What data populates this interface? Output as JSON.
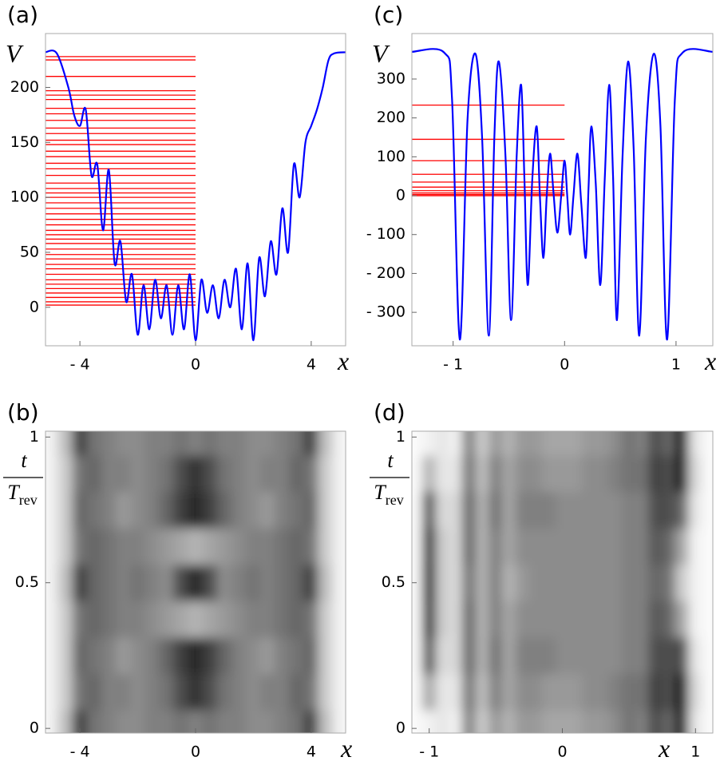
{
  "chart_data": [
    {
      "type": "line",
      "panel_label": "(a)",
      "xlabel": "x",
      "ylabel": "V",
      "xlim": [
        -5.19,
        5.19
      ],
      "ylim": [
        -35,
        249
      ],
      "xticks": [
        {
          "value": -4,
          "label": "- 4"
        },
        0,
        4
      ],
      "yticks": [
        0,
        50,
        100,
        150,
        200
      ],
      "color": "#0000ff",
      "x": [
        -5.2,
        -4.8,
        -4.4,
        -4.2,
        -4.0,
        -3.8,
        -3.6,
        -3.4,
        -3.2,
        -3.0,
        -2.8,
        -2.6,
        -2.4,
        -2.2,
        -2.0,
        -1.8,
        -1.6,
        -1.4,
        -1.2,
        -1.0,
        -0.8,
        -0.6,
        -0.4,
        -0.2,
        0,
        0.2,
        0.4,
        0.6,
        0.8,
        1.0,
        1.2,
        1.4,
        1.6,
        1.8,
        2.0,
        2.2,
        2.4,
        2.6,
        2.8,
        3.0,
        3.2,
        3.4,
        3.6,
        3.8,
        4.0,
        4.2,
        4.4,
        4.6,
        4.8,
        5.2
      ],
      "values": [
        232,
        231,
        200,
        175,
        165,
        180,
        120,
        130,
        70,
        125,
        40,
        60,
        5,
        30,
        -25,
        20,
        -20,
        25,
        -10,
        20,
        -25,
        20,
        -20,
        30,
        -30,
        25,
        -5,
        20,
        -10,
        25,
        0,
        35,
        -20,
        40,
        -30,
        45,
        10,
        60,
        30,
        90,
        50,
        130,
        100,
        150,
        165,
        180,
        200,
        225,
        231,
        232
      ],
      "levels_color": "#ff0000",
      "levels_x": [
        -5.19,
        0
      ],
      "levels": [
        2,
        5,
        9,
        13,
        17,
        21,
        25,
        30,
        35,
        39,
        44,
        48,
        53,
        58,
        62,
        66,
        70,
        75,
        80,
        85,
        90,
        95,
        100,
        104,
        108,
        113,
        120,
        126,
        131,
        137,
        142,
        148,
        152,
        158,
        163,
        170,
        176,
        181,
        189,
        193,
        197,
        210,
        225,
        228
      ]
    },
    {
      "type": "heatmap",
      "panel_label": "(b)",
      "xlabel": "x",
      "ylabel": "t",
      "ylabel_den": "T",
      "ylabel_sub": "rev",
      "xlim": [
        -5.19,
        5.19
      ],
      "ylim": [
        -0.016,
        1.02
      ],
      "xticks": [
        {
          "value": -4,
          "label": "- 4"
        },
        0,
        4
      ],
      "yticks": [
        0,
        0.5,
        1
      ],
      "x": [
        -5,
        -4.5,
        -4,
        -3.5,
        -3,
        -2.5,
        -2,
        -1.5,
        -1,
        -0.5,
        0,
        0.5,
        1,
        1.5,
        2,
        2.5,
        3,
        3.5,
        4,
        4.5,
        5
      ],
      "y": [
        0,
        0.125,
        0.25,
        0.375,
        0.5,
        0.625,
        0.75,
        0.875,
        1
      ],
      "z": [
        [
          0.05,
          0.25,
          0.75,
          0.55,
          0.5,
          0.45,
          0.45,
          0.5,
          0.5,
          0.55,
          0.5,
          0.55,
          0.5,
          0.5,
          0.45,
          0.45,
          0.5,
          0.55,
          0.75,
          0.25,
          0.05
        ],
        [
          0.05,
          0.2,
          0.55,
          0.6,
          0.5,
          0.5,
          0.45,
          0.5,
          0.55,
          0.7,
          0.8,
          0.7,
          0.55,
          0.5,
          0.45,
          0.5,
          0.5,
          0.6,
          0.55,
          0.2,
          0.05
        ],
        [
          0.05,
          0.2,
          0.6,
          0.55,
          0.5,
          0.4,
          0.45,
          0.5,
          0.6,
          0.75,
          0.85,
          0.75,
          0.6,
          0.5,
          0.45,
          0.4,
          0.5,
          0.55,
          0.6,
          0.2,
          0.05
        ],
        [
          0.05,
          0.2,
          0.55,
          0.6,
          0.55,
          0.5,
          0.5,
          0.45,
          0.4,
          0.35,
          0.3,
          0.35,
          0.4,
          0.45,
          0.5,
          0.5,
          0.55,
          0.6,
          0.55,
          0.2,
          0.05
        ],
        [
          0.05,
          0.25,
          0.75,
          0.6,
          0.55,
          0.5,
          0.55,
          0.5,
          0.45,
          0.7,
          0.85,
          0.7,
          0.45,
          0.5,
          0.55,
          0.5,
          0.55,
          0.6,
          0.75,
          0.25,
          0.05
        ],
        [
          0.05,
          0.2,
          0.55,
          0.6,
          0.55,
          0.5,
          0.5,
          0.45,
          0.4,
          0.35,
          0.3,
          0.35,
          0.4,
          0.45,
          0.5,
          0.5,
          0.55,
          0.6,
          0.55,
          0.2,
          0.05
        ],
        [
          0.05,
          0.2,
          0.6,
          0.55,
          0.5,
          0.4,
          0.45,
          0.5,
          0.6,
          0.75,
          0.85,
          0.75,
          0.6,
          0.5,
          0.45,
          0.4,
          0.5,
          0.55,
          0.6,
          0.2,
          0.05
        ],
        [
          0.05,
          0.2,
          0.55,
          0.6,
          0.5,
          0.5,
          0.45,
          0.5,
          0.55,
          0.7,
          0.8,
          0.7,
          0.55,
          0.5,
          0.45,
          0.5,
          0.5,
          0.6,
          0.55,
          0.2,
          0.05
        ],
        [
          0.05,
          0.25,
          0.75,
          0.55,
          0.5,
          0.45,
          0.45,
          0.5,
          0.5,
          0.55,
          0.5,
          0.55,
          0.5,
          0.5,
          0.45,
          0.45,
          0.5,
          0.55,
          0.75,
          0.25,
          0.05
        ]
      ]
    },
    {
      "type": "line",
      "panel_label": "(c)",
      "xlabel": "x",
      "ylabel": "V",
      "xlim": [
        -1.37,
        1.33
      ],
      "ylim": [
        -386,
        417
      ],
      "xticks": [
        {
          "value": -1,
          "label": "- 1"
        },
        0,
        1
      ],
      "yticks": [
        {
          "value": -300,
          "label": "- 300"
        },
        {
          "value": -200,
          "label": "- 200"
        },
        {
          "value": -100,
          "label": "- 100"
        },
        0,
        100,
        200,
        300
      ],
      "color": "#0000ff",
      "x": [
        -1.37,
        -1.08,
        -1.01,
        -0.94,
        -0.87,
        -0.8,
        -0.74,
        -0.68,
        -0.63,
        -0.59,
        -0.53,
        -0.48,
        -0.43,
        -0.39,
        -0.36,
        -0.33,
        -0.29,
        -0.25,
        -0.22,
        -0.19,
        -0.16,
        -0.13,
        -0.1,
        -0.065,
        -0.03,
        0,
        0.025,
        0.05,
        0.08,
        0.115,
        0.15,
        0.19,
        0.215,
        0.24,
        0.28,
        0.32,
        0.36,
        0.4,
        0.435,
        0.47,
        0.52,
        0.57,
        0.62,
        0.67,
        0.73,
        0.8,
        0.86,
        0.92,
        0.99,
        1.06,
        1.33
      ],
      "values": [
        370,
        368,
        250,
        -370,
        200,
        365,
        150,
        -360,
        150,
        345,
        100,
        -320,
        100,
        285,
        40,
        -230,
        40,
        178,
        -10,
        -160,
        0,
        108,
        10,
        -95,
        0,
        90,
        -5,
        -100,
        0,
        108,
        -20,
        -160,
        20,
        178,
        30,
        -230,
        40,
        285,
        50,
        -320,
        100,
        345,
        120,
        -360,
        150,
        365,
        180,
        -370,
        250,
        368,
        370
      ],
      "levels_color": "#ff0000",
      "levels_x": [
        -1.37,
        0
      ],
      "levels": [
        233,
        145,
        90,
        55,
        35,
        22,
        13,
        7,
        3,
        0
      ]
    },
    {
      "type": "heatmap",
      "panel_label": "(d)",
      "xlabel": "x",
      "ylabel": "t",
      "ylabel_den": "T",
      "ylabel_sub": "rev",
      "xlim": [
        -1.13,
        1.13
      ],
      "ylim": [
        -0.016,
        1.02
      ],
      "xticks": [
        {
          "value": -1,
          "label": "- 1"
        },
        0,
        1
      ],
      "yticks": [
        0,
        0.5,
        1
      ],
      "x": [
        -1.1,
        -1.0,
        -0.9,
        -0.8,
        -0.7,
        -0.6,
        -0.5,
        -0.4,
        -0.3,
        -0.2,
        -0.1,
        0,
        0.1,
        0.2,
        0.3,
        0.4,
        0.5,
        0.6,
        0.7,
        0.8,
        0.9,
        1.0,
        1.1
      ],
      "y": [
        0,
        0.125,
        0.25,
        0.375,
        0.5,
        0.625,
        0.75,
        0.875,
        1
      ],
      "z": [
        [
          0.02,
          0.05,
          0.1,
          0.05,
          0.5,
          0.2,
          0.4,
          0.3,
          0.4,
          0.4,
          0.35,
          0.35,
          0.35,
          0.4,
          0.4,
          0.45,
          0.55,
          0.5,
          0.7,
          0.6,
          0.9,
          0.1,
          0.02
        ],
        [
          0.02,
          0.35,
          0.1,
          0.1,
          0.55,
          0.25,
          0.5,
          0.35,
          0.45,
          0.45,
          0.4,
          0.4,
          0.4,
          0.45,
          0.45,
          0.5,
          0.55,
          0.55,
          0.75,
          0.7,
          0.95,
          0.15,
          0.02
        ],
        [
          0.02,
          0.7,
          0.15,
          0.15,
          0.6,
          0.3,
          0.55,
          0.35,
          0.5,
          0.5,
          0.5,
          0.45,
          0.45,
          0.45,
          0.45,
          0.45,
          0.5,
          0.5,
          0.7,
          0.7,
          0.7,
          0.1,
          0.02
        ],
        [
          0.02,
          0.9,
          0.2,
          0.15,
          0.6,
          0.3,
          0.5,
          0.35,
          0.45,
          0.45,
          0.45,
          0.45,
          0.45,
          0.45,
          0.45,
          0.45,
          0.5,
          0.5,
          0.65,
          0.6,
          0.35,
          0.05,
          0.02
        ],
        [
          0.02,
          1.0,
          0.2,
          0.15,
          0.55,
          0.3,
          0.5,
          0.3,
          0.4,
          0.45,
          0.45,
          0.45,
          0.45,
          0.45,
          0.45,
          0.45,
          0.5,
          0.5,
          0.6,
          0.55,
          0.2,
          0.05,
          0.02
        ],
        [
          0.02,
          0.9,
          0.2,
          0.15,
          0.6,
          0.3,
          0.5,
          0.35,
          0.45,
          0.45,
          0.45,
          0.45,
          0.45,
          0.45,
          0.45,
          0.45,
          0.5,
          0.5,
          0.65,
          0.6,
          0.35,
          0.05,
          0.02
        ],
        [
          0.02,
          0.7,
          0.15,
          0.15,
          0.6,
          0.3,
          0.55,
          0.35,
          0.5,
          0.5,
          0.5,
          0.45,
          0.45,
          0.45,
          0.45,
          0.45,
          0.5,
          0.5,
          0.7,
          0.7,
          0.6,
          0.1,
          0.02
        ],
        [
          0.02,
          0.3,
          0.1,
          0.1,
          0.55,
          0.25,
          0.5,
          0.35,
          0.45,
          0.45,
          0.4,
          0.4,
          0.4,
          0.45,
          0.45,
          0.5,
          0.55,
          0.55,
          0.75,
          0.7,
          0.9,
          0.15,
          0.02
        ],
        [
          0.02,
          0.05,
          0.1,
          0.05,
          0.5,
          0.2,
          0.4,
          0.3,
          0.4,
          0.4,
          0.35,
          0.35,
          0.35,
          0.4,
          0.4,
          0.45,
          0.55,
          0.5,
          0.7,
          0.6,
          0.95,
          0.1,
          0.02
        ]
      ]
    }
  ]
}
